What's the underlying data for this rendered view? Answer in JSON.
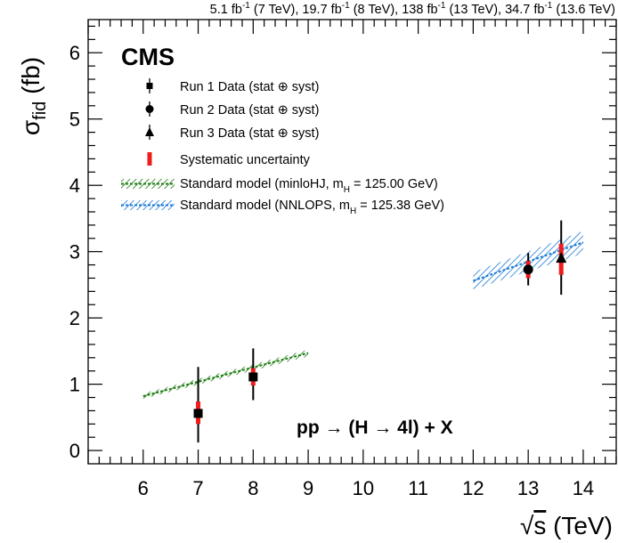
{
  "chart_data": {
    "type": "scatter",
    "top_label": {
      "lumi1": "5.1 fb",
      "ctx1": " (7 TeV), 19.7 fb",
      "ctx2": " (8 TeV), 138 fb",
      "ctx3": " (13 TeV), 34.7 fb",
      "ctx4": " (13.6 TeV)",
      "sup": "-1"
    },
    "experiment": "CMS",
    "ylabel": {
      "main": "σ",
      "sub": "fid",
      "unit": " (fb)"
    },
    "xlabel": {
      "root": "√",
      "var": "s",
      "unit": " (TeV)"
    },
    "process": "pp  → (H  → 4l) + X",
    "xlim": [
      5,
      14.6
    ],
    "ylim": [
      -0.2,
      6.5
    ],
    "x_ticks": [
      6,
      7,
      8,
      9,
      10,
      11,
      12,
      13,
      14
    ],
    "x_tick_labels": [
      "6",
      "7",
      "8",
      "9",
      "10",
      "11",
      "12",
      "13",
      "14"
    ],
    "y_ticks": [
      0,
      1,
      2,
      3,
      4,
      5,
      6
    ],
    "y_tick_labels": [
      "0",
      "1",
      "2",
      "3",
      "4",
      "5",
      "6"
    ],
    "legend": {
      "entries": [
        {
          "text": "Run 1 Data (stat ⊕ syst)"
        },
        {
          "text": "Run 2 Data (stat ⊕ syst)"
        },
        {
          "text": "Run 3 Data (stat ⊕ syst)"
        },
        {
          "text": "Systematic uncertainty"
        },
        {
          "text": "Standard model (minloHJ, m",
          "sub": "H",
          "tail": " = 125.00 GeV)"
        },
        {
          "text": "Standard model (NNLOPS, m",
          "sub": "H",
          "tail": " = 125.38 GeV)"
        }
      ]
    },
    "series": [
      {
        "marker": "square",
        "color": "#000000",
        "points": [
          {
            "x": 7,
            "y": 0.56,
            "tot": [
              0.12,
              1.26
            ],
            "syst": [
              0.4,
              0.74
            ]
          },
          {
            "x": 8,
            "y": 1.11,
            "tot": [
              0.76,
              1.54
            ],
            "syst": [
              0.98,
              1.24
            ]
          }
        ]
      },
      {
        "marker": "circle",
        "color": "#000000",
        "points": [
          {
            "x": 13,
            "y": 2.73,
            "tot": [
              2.49,
              2.98
            ],
            "syst": [
              2.6,
              2.86
            ]
          }
        ]
      },
      {
        "marker": "triangle",
        "color": "#000000",
        "points": [
          {
            "x": 13.6,
            "y": 2.9,
            "tot": [
              2.35,
              3.47
            ],
            "syst": [
              2.65,
              3.12
            ]
          }
        ]
      }
    ],
    "sm_bands": [
      {
        "color": "#1e7e14",
        "x": [
          6,
          9
        ],
        "lower": [
          0.78,
          1.42
        ],
        "upper": [
          0.86,
          1.52
        ]
      },
      {
        "color": "#1b7ad6",
        "x": [
          12,
          14
        ],
        "lower": [
          2.43,
          2.97
        ],
        "upper": [
          2.69,
          3.31
        ]
      }
    ],
    "grid": false,
    "legend_position": "top-left"
  }
}
